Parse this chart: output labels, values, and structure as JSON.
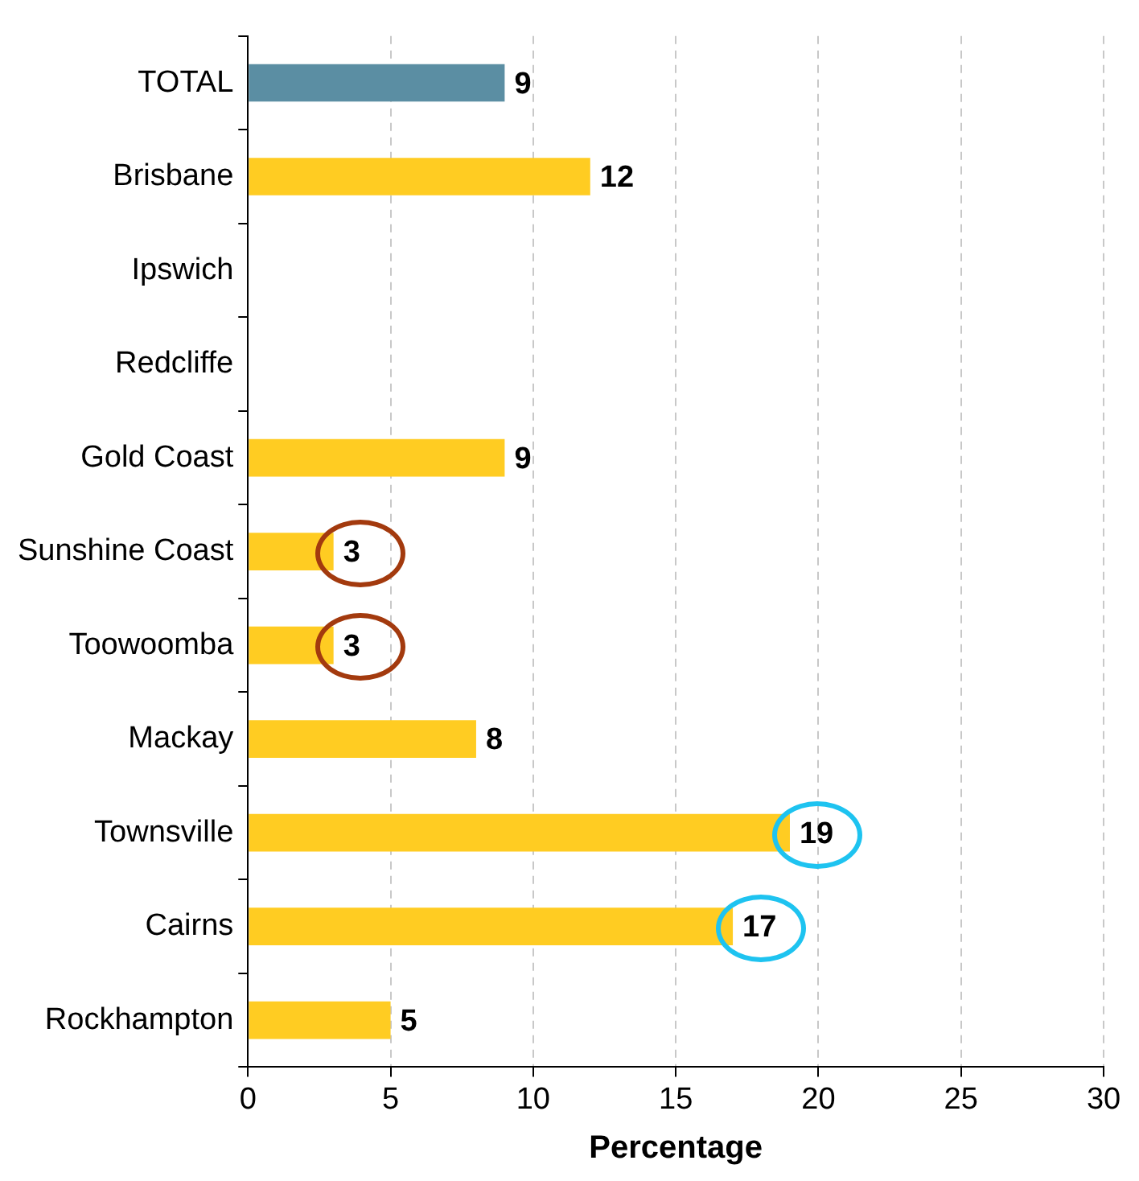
{
  "chart_data": {
    "type": "bar",
    "orientation": "horizontal",
    "xlabel": "Percentage",
    "categories": [
      "TOTAL",
      "Brisbane",
      "Ipswich",
      "Redcliffe",
      "Gold Coast",
      "Sunshine Coast",
      "Toowoomba",
      "Mackay",
      "Townsville",
      "Cairns",
      "Rockhampton"
    ],
    "values": [
      9,
      12,
      null,
      null,
      9,
      3,
      3,
      8,
      19,
      17,
      5
    ],
    "colors": [
      "#5b8ea3",
      "#ffcc22",
      "#ffcc22",
      "#ffcc22",
      "#ffcc22",
      "#ffcc22",
      "#ffcc22",
      "#ffcc22",
      "#ffcc22",
      "#ffcc22",
      "#ffcc22"
    ],
    "xlim": [
      0,
      30
    ],
    "xticks": [
      0,
      5,
      10,
      15,
      20,
      25,
      30
    ],
    "grid": "x",
    "data_labels": true,
    "legend": false
  }
}
